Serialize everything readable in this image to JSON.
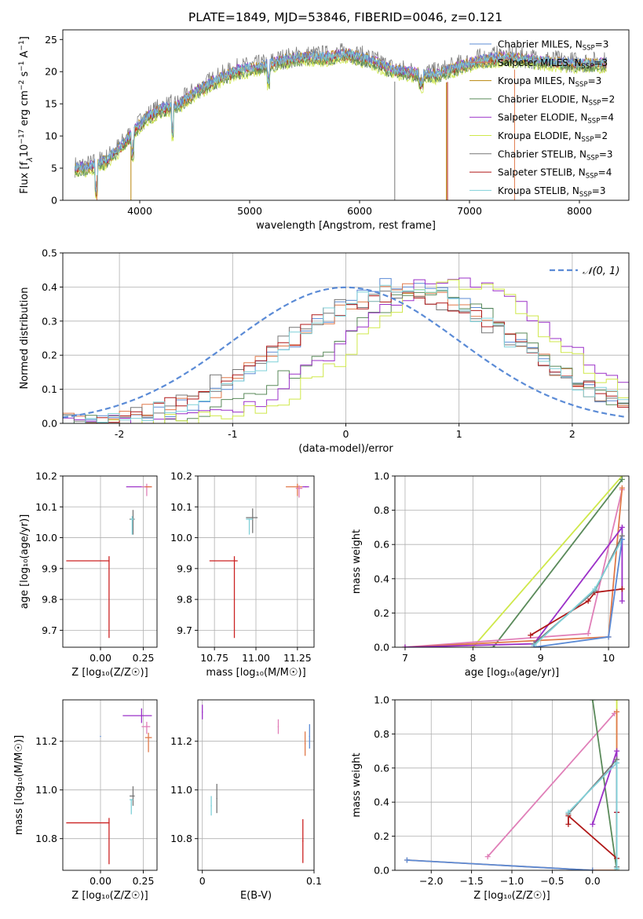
{
  "figure_title": "PLATE=1849, MJD=53846, FIBERID=0046, z=0.121",
  "colors": {
    "chabrier_miles": "#5b8bd6",
    "salpeter_miles": "#e0794a",
    "kroupa_miles": "#b8860b",
    "chabrier_elodie": "#5a8a5a",
    "salpeter_elodie": "#9b30c8",
    "kroupa_elodie": "#cfe84a",
    "chabrier_stelib": "#777777",
    "salpeter_stelib": "#b01818",
    "kroupa_stelib": "#7fd0d8",
    "pink": "#e07fb8",
    "red_line": "#cc2222",
    "normal_curve": "#5b8bd6"
  },
  "chart_data": [
    {
      "id": "spectrum",
      "type": "line",
      "title": "PLATE=1849, MJD=53846, FIBERID=0046, z=0.121",
      "xlabel": "wavelength [Angstrom, rest frame]",
      "ylabel_parts": [
        "Flux [f",
        "λ",
        "10",
        "−17",
        " erg cm",
        "−2",
        " s",
        "−1",
        " A",
        "−1",
        "]"
      ],
      "xlim": [
        3300,
        8450
      ],
      "ylim": [
        0,
        26.5
      ],
      "xticks": [
        4000,
        5000,
        6000,
        7000,
        8000
      ],
      "yticks": [
        0,
        5,
        10,
        15,
        20,
        25
      ],
      "legend_position": "right",
      "legend": [
        {
          "name": "Chabrier MILES, N",
          "sub": "SSP",
          "eq": "=3",
          "color_key": "chabrier_miles"
        },
        {
          "name": "Salpeter MILES, N",
          "sub": "SSP",
          "eq": "=3",
          "color_key": "salpeter_miles"
        },
        {
          "name": "Kroupa MILES, N",
          "sub": "SSP",
          "eq": "=3",
          "color_key": "kroupa_miles"
        },
        {
          "name": "Chabrier ELODIE, N",
          "sub": "SSP",
          "eq": "=2",
          "color_key": "chabrier_elodie"
        },
        {
          "name": "Salpeter ELODIE, N",
          "sub": "SSP",
          "eq": "=4",
          "color_key": "salpeter_elodie"
        },
        {
          "name": "Kroupa ELODIE, N",
          "sub": "SSP",
          "eq": "=2",
          "color_key": "kroupa_elodie"
        },
        {
          "name": "Chabrier STELIB, N",
          "sub": "SSP",
          "eq": "=3",
          "color_key": "chabrier_stelib"
        },
        {
          "name": "Salpeter STELIB, N",
          "sub": "SSP",
          "eq": "=4",
          "color_key": "salpeter_stelib"
        },
        {
          "name": "Kroupa STELIB, N",
          "sub": "SSP",
          "eq": "=3",
          "color_key": "kroupa_stelib"
        }
      ],
      "continuum": [
        [
          3400,
          5.2
        ],
        [
          3550,
          5.5
        ],
        [
          3700,
          6.5
        ],
        [
          3850,
          9
        ],
        [
          3950,
          11
        ],
        [
          4050,
          13
        ],
        [
          4200,
          14.5
        ],
        [
          4350,
          15
        ],
        [
          4500,
          17
        ],
        [
          4700,
          19
        ],
        [
          4900,
          20.5
        ],
        [
          5100,
          21
        ],
        [
          5300,
          22
        ],
        [
          5500,
          22.5
        ],
        [
          5700,
          22.5
        ],
        [
          5900,
          23
        ],
        [
          6100,
          22
        ],
        [
          6300,
          20.5
        ],
        [
          6500,
          20
        ],
        [
          6700,
          19.8
        ],
        [
          6900,
          21
        ],
        [
          7100,
          22
        ],
        [
          7300,
          22.5
        ],
        [
          7600,
          22
        ],
        [
          7900,
          21.5
        ],
        [
          8200,
          21.5
        ]
      ]
    },
    {
      "id": "residuals",
      "type": "histogram",
      "xlabel": "(data-model)/error",
      "ylabel": "Normed distribution",
      "xlim": [
        -2.5,
        2.5
      ],
      "ylim": [
        0,
        0.5
      ],
      "xticks": [
        -2,
        -1,
        0,
        1,
        2
      ],
      "yticks": [
        0.0,
        0.1,
        0.2,
        0.3,
        0.4,
        0.5
      ],
      "legend_label": "𝒩(0, 1)",
      "legend_position": "top-right",
      "bin_width": 0.1,
      "bin_start": -2.5,
      "series": [
        {
          "color_key": "chabrier_miles",
          "shift": 0.55,
          "sigma": 0.95,
          "peak": 0.41
        },
        {
          "color_key": "salpeter_miles",
          "shift": 0.5,
          "sigma": 1.0,
          "peak": 0.39
        },
        {
          "color_key": "chabrier_elodie",
          "shift": 0.75,
          "sigma": 0.9,
          "peak": 0.38
        },
        {
          "color_key": "salpeter_elodie",
          "shift": 0.95,
          "sigma": 0.9,
          "peak": 0.42
        },
        {
          "color_key": "kroupa_elodie",
          "shift": 1.0,
          "sigma": 0.85,
          "peak": 0.41
        },
        {
          "color_key": "chabrier_stelib",
          "shift": 0.45,
          "sigma": 1.05,
          "peak": 0.38
        },
        {
          "color_key": "salpeter_stelib",
          "shift": 0.5,
          "sigma": 1.05,
          "peak": 0.38
        },
        {
          "color_key": "kroupa_stelib",
          "shift": 0.5,
          "sigma": 1.0,
          "peak": 0.39
        }
      ]
    },
    {
      "id": "age_vs_Z",
      "type": "scatter",
      "xlabel": "Z [log₁₀(Z/Z☉)]",
      "ylabel": "age  [log₁₀(age/yr)]",
      "xlim": [
        -0.22,
        0.33
      ],
      "ylim": [
        9.645,
        10.2
      ],
      "xticks": [
        0.0,
        0.25
      ],
      "xticklabels": [
        "0.00",
        "0.25"
      ],
      "yticks": [
        9.7,
        9.8,
        9.9,
        10.0,
        10.1,
        10.2
      ],
      "points": [
        {
          "x": 0.05,
          "y": 9.925,
          "xerr": [
            0.25,
            0.0
          ],
          "yerr": [
            0.25,
            0.015
          ],
          "color_key": "red_line"
        },
        {
          "x": 0.27,
          "y": 10.165,
          "xerr": [
            0.12,
            0.03
          ],
          "yerr": [
            0.0,
            0.0
          ],
          "color_key": "salpeter_elodie"
        },
        {
          "x": 0.27,
          "y": 10.165,
          "xerr": [
            0.03,
            0.03
          ],
          "yerr": [
            0.03,
            0.01
          ],
          "color_key": "pink"
        },
        {
          "x": 0.28,
          "y": 10.165,
          "xerr": [
            0.02,
            0.02
          ],
          "yerr": [
            0.0,
            0.0
          ],
          "color_key": "salpeter_miles"
        },
        {
          "x": 0.19,
          "y": 10.06,
          "xerr": [
            0.02,
            0.01
          ],
          "yerr": [
            0.05,
            0.03
          ],
          "color_key": "chabrier_stelib"
        },
        {
          "x": 0.185,
          "y": 10.06,
          "xerr": [
            0.01,
            0.01
          ],
          "yerr": [
            0.05,
            0.01
          ],
          "color_key": "kroupa_stelib"
        }
      ]
    },
    {
      "id": "age_vs_mass",
      "type": "scatter",
      "xlabel": "mass [log₁₀(M/M☉)]",
      "ylabel": "",
      "xlim": [
        10.65,
        11.35
      ],
      "ylim": [
        9.645,
        10.2
      ],
      "xticks": [
        10.75,
        11.0,
        11.25
      ],
      "xticklabels": [
        "10.75",
        "11.00",
        "11.25"
      ],
      "yticks": [
        9.7,
        9.8,
        9.9,
        10.0,
        10.1,
        10.2
      ],
      "points": [
        {
          "x": 10.87,
          "y": 9.925,
          "xerr": [
            0.15,
            0.02
          ],
          "yerr": [
            0.25,
            0.015
          ],
          "color_key": "red_line"
        },
        {
          "x": 11.25,
          "y": 10.165,
          "xerr": [
            0.07,
            0.03
          ],
          "yerr": [
            0.03,
            0.01
          ],
          "color_key": "salpeter_miles"
        },
        {
          "x": 11.26,
          "y": 10.16,
          "xerr": [
            0.02,
            0.02
          ],
          "yerr": [
            0.03,
            0.01
          ],
          "color_key": "pink"
        },
        {
          "x": 11.3,
          "y": 10.165,
          "xerr": [
            0.02,
            0.02
          ],
          "yerr": [
            0.0,
            0.0
          ],
          "color_key": "salpeter_elodie"
        },
        {
          "x": 10.98,
          "y": 10.065,
          "xerr": [
            0.04,
            0.03
          ],
          "yerr": [
            0.05,
            0.03
          ],
          "color_key": "chabrier_stelib"
        },
        {
          "x": 10.96,
          "y": 10.06,
          "xerr": [
            0.02,
            0.02
          ],
          "yerr": [
            0.05,
            0.0
          ],
          "color_key": "kroupa_stelib"
        }
      ]
    },
    {
      "id": "weight_vs_age",
      "type": "line",
      "xlabel": "age  [log₁₀(age/yr)]",
      "ylabel": "mass weight",
      "xlim": [
        6.85,
        10.3
      ],
      "ylim": [
        0,
        1
      ],
      "xticks": [
        7,
        8,
        9,
        10
      ],
      "yticks": [
        0.0,
        0.2,
        0.4,
        0.6,
        0.8,
        1.0
      ],
      "yticklabels": [
        "0.0",
        "0.2",
        "0.4",
        "0.6",
        "0.8",
        "1.0"
      ],
      "series": [
        {
          "color_key": "kroupa_elodie",
          "x": [
            8.0,
            10.2
          ],
          "y": [
            0.0,
            1.0
          ]
        },
        {
          "color_key": "chabrier_elodie",
          "x": [
            8.3,
            10.2
          ],
          "y": [
            0.0,
            0.98
          ]
        },
        {
          "color_key": "pink",
          "x": [
            7.0,
            9.7,
            10.2
          ],
          "y": [
            0.0,
            0.08,
            0.92
          ]
        },
        {
          "color_key": "salpeter_miles",
          "x": [
            7.0,
            10.0,
            10.2
          ],
          "y": [
            0.0,
            0.06,
            0.93
          ]
        },
        {
          "color_key": "salpeter_elodie",
          "x": [
            7.0,
            8.9,
            10.2,
            10.2
          ],
          "y": [
            0.0,
            0.02,
            0.7,
            0.27
          ]
        },
        {
          "color_key": "salpeter_stelib",
          "x": [
            8.85,
            9.7,
            9.8,
            10.2
          ],
          "y": [
            0.07,
            0.27,
            0.32,
            0.34
          ]
        },
        {
          "color_key": "chabrier_stelib",
          "x": [
            8.9,
            9.8,
            10.2
          ],
          "y": [
            0.02,
            0.33,
            0.65
          ]
        },
        {
          "color_key": "kroupa_stelib",
          "x": [
            8.9,
            9.8,
            10.2
          ],
          "y": [
            0.01,
            0.34,
            0.63
          ]
        },
        {
          "color_key": "chabrier_miles",
          "x": [
            8.9,
            10.0,
            10.2
          ],
          "y": [
            0.0,
            0.06,
            0.63
          ]
        }
      ]
    },
    {
      "id": "mass_vs_Z",
      "type": "scatter",
      "xlabel": "Z [log₁₀(Z/Z☉)]",
      "ylabel": "mass [log₁₀(M/M☉)]",
      "xlim": [
        -0.22,
        0.33
      ],
      "ylim": [
        10.67,
        11.37
      ],
      "xticks": [
        0.0,
        0.25
      ],
      "xticklabels": [
        "0.00",
        "0.25"
      ],
      "yticks": [
        10.8,
        11.0,
        11.2
      ],
      "points": [
        {
          "x": 0.05,
          "y": 10.865,
          "xerr": [
            0.25,
            0.0
          ],
          "yerr": [
            0.17,
            0.02
          ],
          "color_key": "red_line"
        },
        {
          "x": 0.24,
          "y": 11.305,
          "xerr": [
            0.11,
            0.06
          ],
          "yerr": [
            0.03,
            0.03
          ],
          "color_key": "salpeter_elodie"
        },
        {
          "x": 0.27,
          "y": 11.26,
          "xerr": [
            0.03,
            0.02
          ],
          "yerr": [
            0.03,
            0.02
          ],
          "color_key": "pink"
        },
        {
          "x": 0.28,
          "y": 11.215,
          "xerr": [
            0.02,
            0.02
          ],
          "yerr": [
            0.06,
            0.02
          ],
          "color_key": "salpeter_miles"
        },
        {
          "x": 0.19,
          "y": 10.975,
          "xerr": [
            0.02,
            0.01
          ],
          "yerr": [
            0.04,
            0.04
          ],
          "color_key": "chabrier_stelib"
        },
        {
          "x": 0.18,
          "y": 10.96,
          "xerr": [
            0.01,
            0.01
          ],
          "yerr": [
            0.06,
            0.0
          ],
          "color_key": "kroupa_stelib"
        },
        {
          "x": 0.0,
          "y": 11.22,
          "xerr": [
            0.0,
            0.0
          ],
          "yerr": [
            0.0,
            0.0
          ],
          "color_key": "chabrier_miles"
        }
      ]
    },
    {
      "id": "mass_vs_ebv",
      "type": "scatter",
      "xlabel": "E(B-V)",
      "ylabel": "",
      "xlim": [
        -0.004,
        0.1
      ],
      "ylim": [
        10.67,
        11.37
      ],
      "xticks": [
        0.0,
        0.1
      ],
      "xticklabels": [
        "0",
        "0.1"
      ],
      "yticks": [
        10.8,
        11.0,
        11.2
      ],
      "yerr_only": true,
      "points": [
        {
          "x": 0.0,
          "y": 11.32,
          "yerr": [
            0.03,
            0.03
          ],
          "color_key": "salpeter_elodie"
        },
        {
          "x": 0.068,
          "y": 11.26,
          "yerr": [
            0.03,
            0.03
          ],
          "color_key": "pink"
        },
        {
          "x": 0.092,
          "y": 11.19,
          "yerr": [
            0.05,
            0.05
          ],
          "color_key": "salpeter_miles"
        },
        {
          "x": 0.096,
          "y": 11.22,
          "yerr": [
            0.05,
            0.05
          ],
          "color_key": "chabrier_miles"
        },
        {
          "x": 0.013,
          "y": 10.965,
          "yerr": [
            0.06,
            0.06
          ],
          "color_key": "chabrier_stelib"
        },
        {
          "x": 0.008,
          "y": 10.935,
          "yerr": [
            0.04,
            0.04
          ],
          "color_key": "kroupa_stelib"
        },
        {
          "x": 0.09,
          "y": 10.79,
          "yerr": [
            0.09,
            0.09
          ],
          "color_key": "red_line"
        }
      ]
    },
    {
      "id": "weight_vs_Z",
      "type": "line",
      "xlabel": "Z [log₁₀(Z/Z☉)]",
      "ylabel": "mass weight",
      "xlim": [
        -2.45,
        0.45
      ],
      "ylim": [
        0,
        1
      ],
      "xticks": [
        -2.0,
        -1.5,
        -1.0,
        -0.5,
        0.0
      ],
      "xticklabels": [
        "−2.0",
        "−1.5",
        "−1.0",
        "−0.5",
        "0.0"
      ],
      "yticks": [
        0.0,
        0.2,
        0.4,
        0.6,
        0.8,
        1.0
      ],
      "yticklabels": [
        "0.0",
        "0.2",
        "0.4",
        "0.6",
        "0.8",
        "1.0"
      ],
      "series": [
        {
          "color_key": "kroupa_elodie",
          "x": [
            0.3,
            0.3
          ],
          "y": [
            0.0,
            1.0
          ]
        },
        {
          "color_key": "pink",
          "x": [
            -1.3,
            0.27
          ],
          "y": [
            0.08,
            0.92
          ]
        },
        {
          "color_key": "salpeter_miles",
          "x": [
            -2.3,
            0.0,
            0.3,
            0.3
          ],
          "y": [
            0.06,
            0.0,
            0.0,
            0.93
          ]
        },
        {
          "color_key": "chabrier_miles",
          "x": [
            -2.3,
            0.0
          ],
          "y": [
            0.06,
            0.0
          ]
        },
        {
          "color_key": "chabrier_elodie",
          "x": [
            0.0,
            0.3
          ],
          "y": [
            1.0,
            0.0
          ]
        },
        {
          "color_key": "salpeter_elodie",
          "x": [
            0.0,
            0.3,
            0.3
          ],
          "y": [
            0.27,
            0.7,
            0.34
          ]
        },
        {
          "color_key": "salpeter_stelib",
          "x": [
            -0.3,
            -0.3,
            0.3,
            0.3
          ],
          "y": [
            0.27,
            0.32,
            0.07,
            0.34
          ]
        },
        {
          "color_key": "chabrier_stelib",
          "x": [
            -0.3,
            0.3,
            0.3
          ],
          "y": [
            0.33,
            0.65,
            0.02
          ]
        },
        {
          "color_key": "kroupa_stelib",
          "x": [
            -0.3,
            0.3,
            0.3
          ],
          "y": [
            0.34,
            0.63,
            0.01
          ]
        }
      ]
    }
  ]
}
